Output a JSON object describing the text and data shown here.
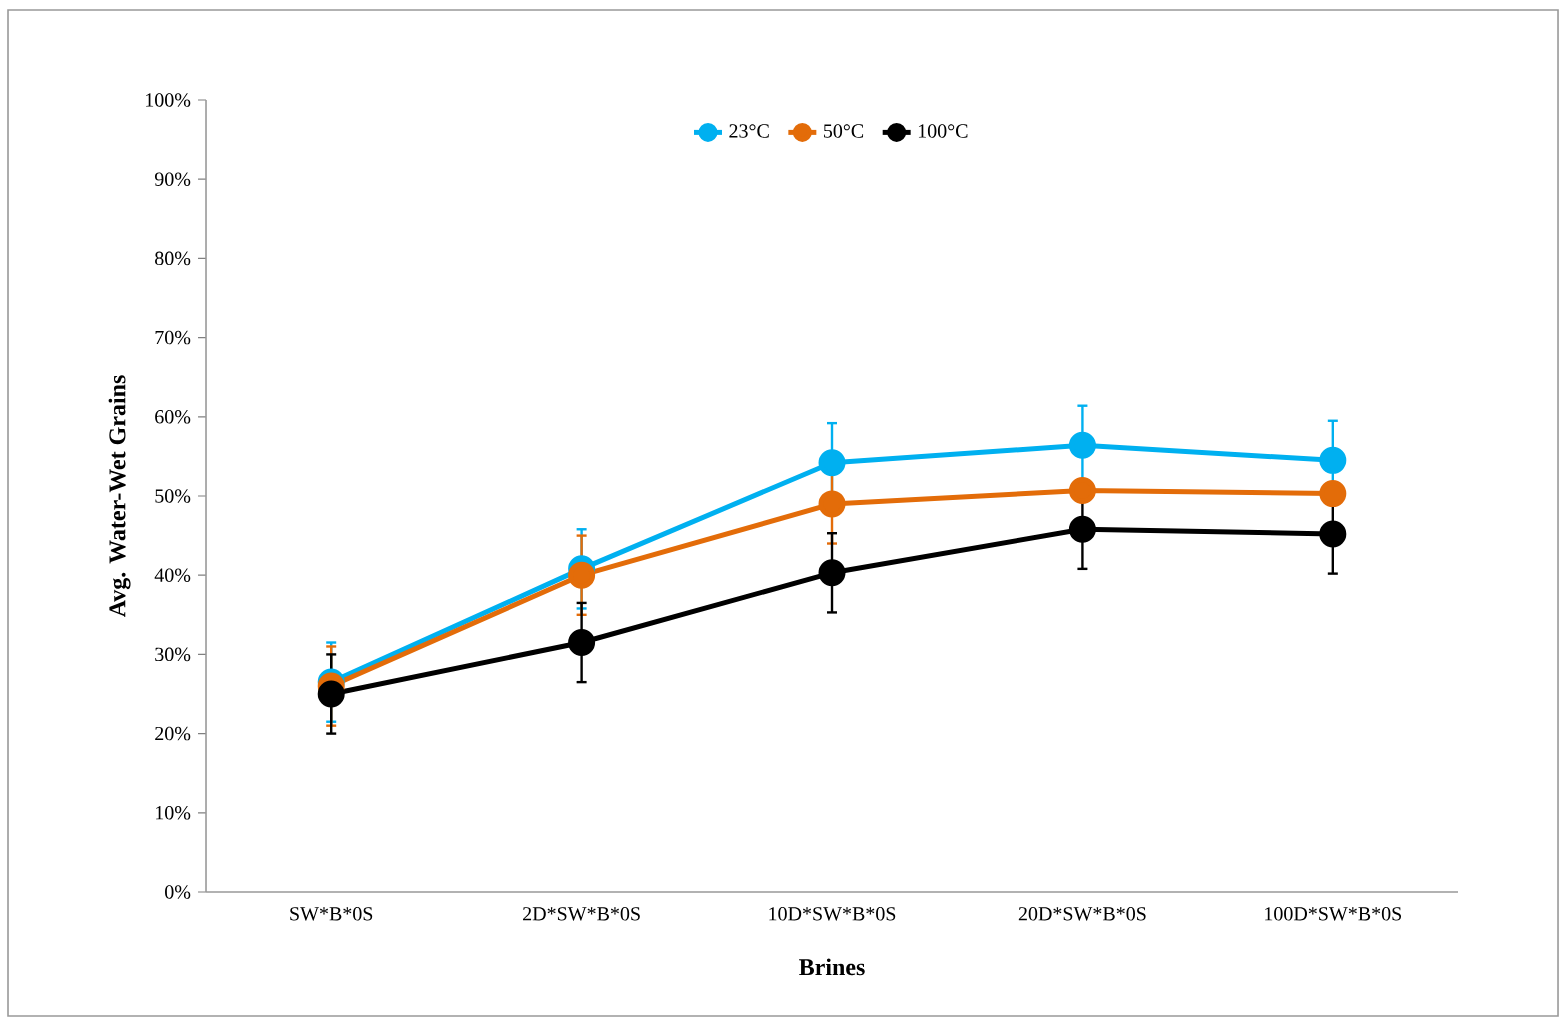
{
  "chart_data": {
    "type": "line",
    "xlabel": "Brines",
    "ylabel": "Avg. Water-Wet Grains",
    "categories": [
      "SW*B*0S",
      "2D*SW*B*0S",
      "10D*SW*B*0S",
      "20D*SW*B*0S",
      "100D*SW*B*0S"
    ],
    "series": [
      {
        "name": "23°C",
        "color": "#00b0f0",
        "values": [
          26.5,
          40.8,
          54.2,
          56.4,
          54.5
        ],
        "errors": [
          5,
          5,
          5,
          5,
          5
        ]
      },
      {
        "name": "50°C",
        "color": "#e36c09",
        "values": [
          26,
          40,
          49,
          50.7,
          50.3
        ],
        "errors": [
          5,
          5,
          5,
          null,
          null
        ]
      },
      {
        "name": "100°C",
        "color": "#000000",
        "values": [
          25,
          31.5,
          40.3,
          45.8,
          45.2
        ],
        "errors": [
          5,
          5,
          5,
          5,
          5
        ]
      }
    ],
    "ylim": [
      0,
      100
    ],
    "yticks": [
      {
        "value": 0,
        "label": "0%"
      },
      {
        "value": 10,
        "label": "10%"
      },
      {
        "value": 20,
        "label": "20%"
      },
      {
        "value": 30,
        "label": "30%"
      },
      {
        "value": 40,
        "label": "40%"
      },
      {
        "value": 50,
        "label": "50%"
      },
      {
        "value": 60,
        "label": "60%"
      },
      {
        "value": 70,
        "label": "70%"
      },
      {
        "value": 80,
        "label": "80%"
      },
      {
        "value": 90,
        "label": "90%"
      },
      {
        "value": 100,
        "label": "100%"
      }
    ],
    "grid": false,
    "legend": "top",
    "marker": "circle",
    "line_style": "solid"
  }
}
